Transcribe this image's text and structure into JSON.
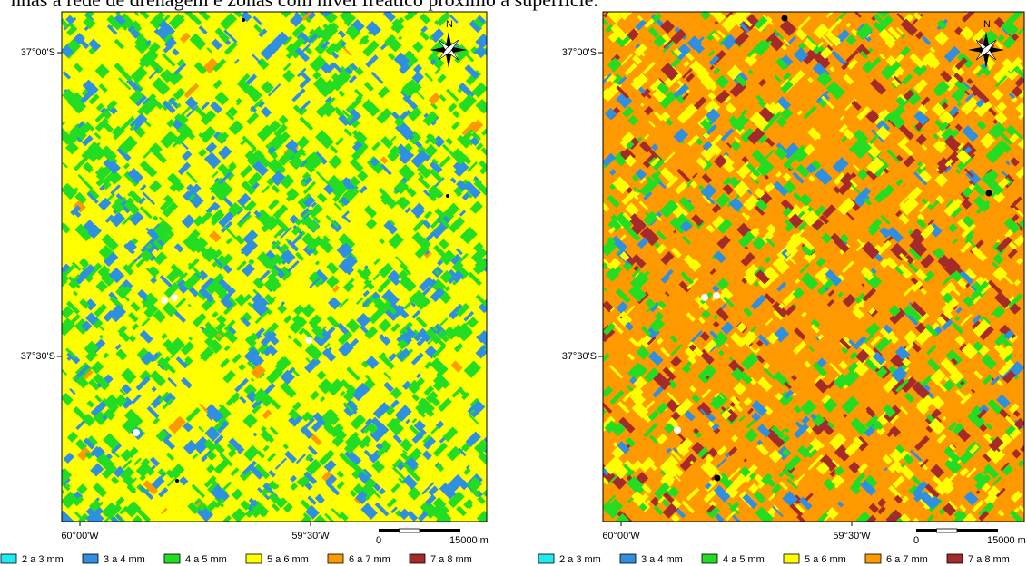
{
  "caption": "nhas a rede de drenagem e zonas com nível freático próximo à superfície.",
  "maps": [
    {
      "lat_labels": [
        "37°00'S",
        "37°30'S"
      ],
      "lon_labels": [
        "60°00'W",
        "59°30'W"
      ],
      "scale": {
        "start": "0",
        "end": "15000 m"
      },
      "north": "N",
      "legend": [
        {
          "label": "2 a 3 mm",
          "color": "#22e8f0"
        },
        {
          "label": "3 a 4 mm",
          "color": "#2f8fe0"
        },
        {
          "label": "4 a 5 mm",
          "color": "#22dd22"
        },
        {
          "label": "5 a 6 mm",
          "color": "#ffff00"
        },
        {
          "label": "6 a 7 mm",
          "color": "#ff9900"
        },
        {
          "label": "7 a 8 mm",
          "color": "#a52a2a"
        }
      ]
    },
    {
      "lat_labels": [
        "37°00'S",
        "37°30'S"
      ],
      "lon_labels": [
        "60°00'W",
        "59°30'W"
      ],
      "scale": {
        "start": "0",
        "end": "15000 m"
      },
      "north": "N",
      "legend": [
        {
          "label": "2 a 3 mm",
          "color": "#22e8f0"
        },
        {
          "label": "3 a 4 mm",
          "color": "#2f8fe0"
        },
        {
          "label": "4 a 5 mm",
          "color": "#22dd22"
        },
        {
          "label": "5 a 6 mm",
          "color": "#ffff00"
        },
        {
          "label": "6 a 7 mm",
          "color": "#ff9900"
        },
        {
          "label": "7 a 8 mm",
          "color": "#a52a2a"
        }
      ]
    }
  ]
}
